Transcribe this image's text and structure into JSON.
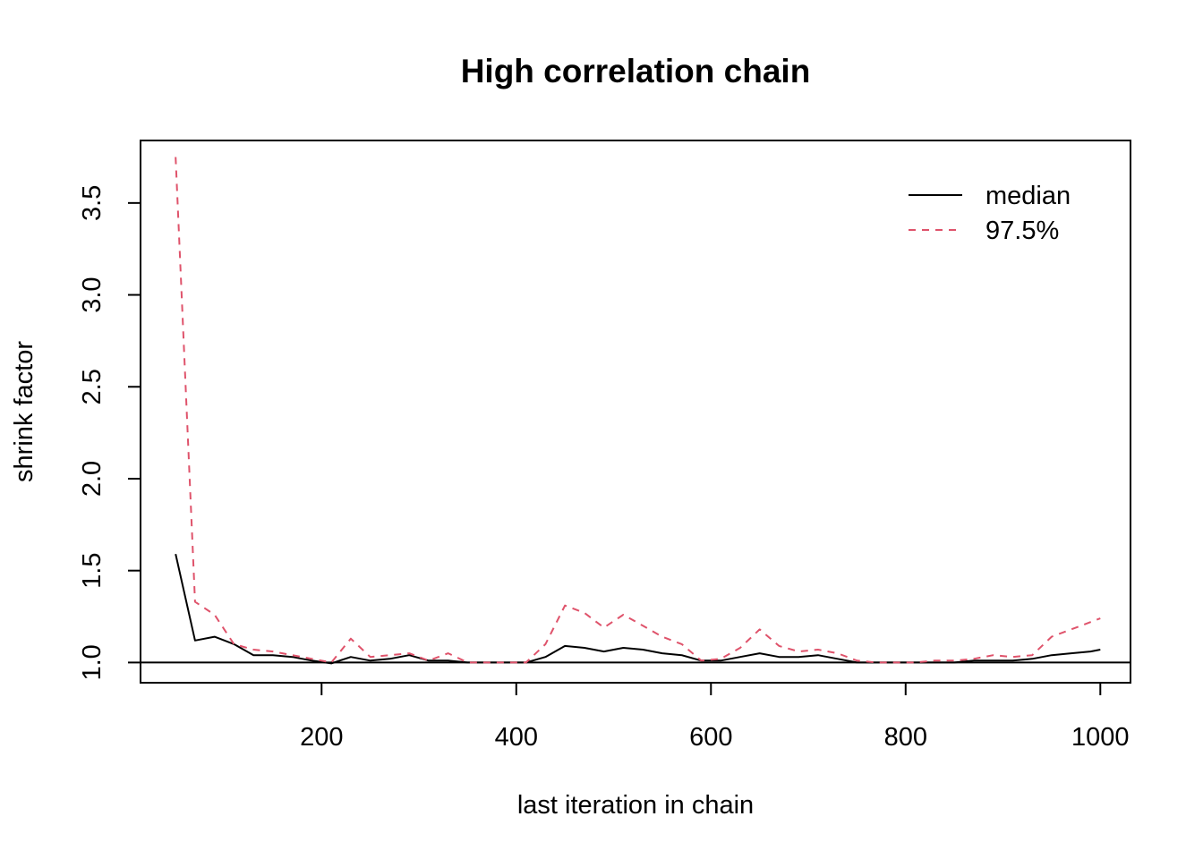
{
  "chart_data": {
    "type": "line",
    "title": "High correlation chain",
    "xlabel": "last iteration in chain",
    "ylabel": "shrink factor",
    "xlim": [
      14,
      1031
    ],
    "ylim": [
      0.89,
      3.84
    ],
    "xticks": [
      200,
      400,
      600,
      800,
      1000
    ],
    "yticks": [
      1.0,
      1.5,
      2.0,
      2.5,
      3.0,
      3.5
    ],
    "ytick_labels": [
      "1.0",
      "1.5",
      "2.0",
      "2.5",
      "3.0",
      "3.5"
    ],
    "reference_line": 1.0,
    "legend_position": "top-right",
    "x": [
      50,
      70,
      90,
      110,
      130,
      150,
      170,
      190,
      210,
      230,
      250,
      270,
      290,
      310,
      330,
      350,
      370,
      390,
      410,
      430,
      450,
      470,
      490,
      510,
      530,
      550,
      570,
      590,
      610,
      630,
      650,
      670,
      690,
      710,
      730,
      750,
      770,
      790,
      810,
      830,
      850,
      870,
      890,
      910,
      930,
      950,
      970,
      990,
      1000
    ],
    "series": [
      {
        "name": "median",
        "color": "#000000",
        "dash": "solid",
        "values": [
          1.59,
          1.12,
          1.14,
          1.1,
          1.04,
          1.04,
          1.03,
          1.01,
          0.995,
          1.03,
          1.01,
          1.02,
          1.04,
          1.01,
          1.01,
          1.0,
          1.0,
          1.0,
          1.0,
          1.03,
          1.09,
          1.08,
          1.06,
          1.08,
          1.07,
          1.05,
          1.04,
          1.01,
          1.01,
          1.03,
          1.05,
          1.03,
          1.03,
          1.04,
          1.02,
          1.0,
          1.0,
          1.0,
          1.0,
          1.0,
          1.0,
          1.01,
          1.01,
          1.01,
          1.02,
          1.04,
          1.05,
          1.06,
          1.07
        ]
      },
      {
        "name": "97.5%",
        "color": "#DF536B",
        "dash": "dashed",
        "values": [
          3.75,
          1.33,
          1.26,
          1.1,
          1.07,
          1.06,
          1.04,
          1.02,
          1.0,
          1.13,
          1.03,
          1.04,
          1.05,
          1.01,
          1.05,
          1.0,
          1.0,
          1.0,
          1.0,
          1.1,
          1.31,
          1.27,
          1.19,
          1.26,
          1.2,
          1.14,
          1.1,
          1.01,
          1.02,
          1.08,
          1.18,
          1.09,
          1.06,
          1.07,
          1.05,
          1.01,
          1.0,
          1.0,
          1.0,
          1.01,
          1.01,
          1.02,
          1.04,
          1.03,
          1.04,
          1.14,
          1.18,
          1.22,
          1.24
        ]
      }
    ]
  }
}
